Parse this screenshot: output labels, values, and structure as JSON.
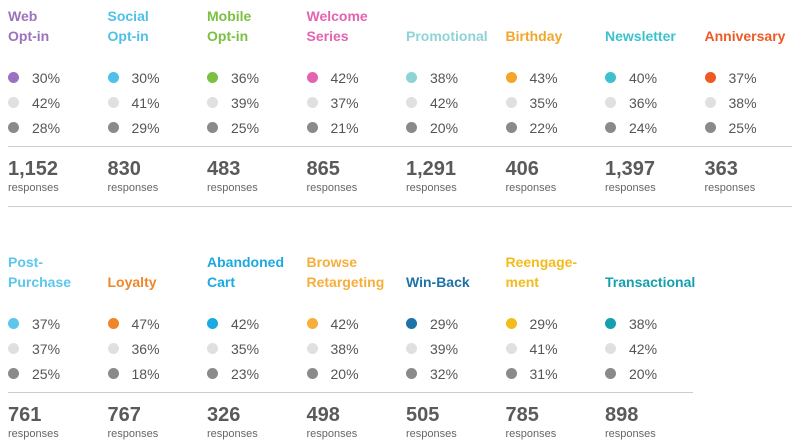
{
  "chart_data": [
    {
      "type": "table",
      "columns": [
        {
          "title": "Web\nOpt-in",
          "color": "#9b72bd",
          "percentages": [
            "30%",
            "42%",
            "28%"
          ],
          "total": "1,152",
          "unit": "responses"
        },
        {
          "title": "Social\nOpt-in",
          "color": "#4fc0e8",
          "percentages": [
            "30%",
            "41%",
            "29%"
          ],
          "total": "830",
          "unit": "responses"
        },
        {
          "title": "Mobile\nOpt-in",
          "color": "#7bc043",
          "percentages": [
            "36%",
            "39%",
            "25%"
          ],
          "total": "483",
          "unit": "responses"
        },
        {
          "title": "Welcome\nSeries",
          "color": "#e463b0",
          "percentages": [
            "42%",
            "37%",
            "21%"
          ],
          "total": "865",
          "unit": "responses"
        },
        {
          "title": "Promotional",
          "color": "#8fd3d6",
          "percentages": [
            "38%",
            "42%",
            "20%"
          ],
          "total": "1,291",
          "unit": "responses"
        },
        {
          "title": "Birthday",
          "color": "#f2a62a",
          "percentages": [
            "43%",
            "35%",
            "22%"
          ],
          "total": "406",
          "unit": "responses"
        },
        {
          "title": "Newsletter",
          "color": "#3cc1ce",
          "percentages": [
            "40%",
            "36%",
            "24%"
          ],
          "total": "1,397",
          "unit": "responses"
        },
        {
          "title": "Anniversary",
          "color": "#ef5a24",
          "percentages": [
            "37%",
            "38%",
            "25%"
          ],
          "total": "363",
          "unit": "responses"
        }
      ]
    },
    {
      "type": "table",
      "columns": [
        {
          "title": "Post-\nPurchase",
          "color": "#5cc6ec",
          "percentages": [
            "37%",
            "37%",
            "25%"
          ],
          "total": "761",
          "unit": "responses"
        },
        {
          "title": "Loyalty",
          "color": "#f0852a",
          "percentages": [
            "47%",
            "36%",
            "18%"
          ],
          "total": "767",
          "unit": "responses"
        },
        {
          "title": "Abandoned\nCart",
          "color": "#1aa9e0",
          "percentages": [
            "42%",
            "35%",
            "23%"
          ],
          "total": "326",
          "unit": "responses"
        },
        {
          "title": "Browse\nRetargeting",
          "color": "#f7ae3a",
          "percentages": [
            "42%",
            "38%",
            "20%"
          ],
          "total": "498",
          "unit": "responses"
        },
        {
          "title": "Win-Back",
          "color": "#1d72a8",
          "percentages": [
            "29%",
            "39%",
            "32%"
          ],
          "total": "505",
          "unit": "responses"
        },
        {
          "title": "Reengage-\nment",
          "color": "#f3bb1c",
          "percentages": [
            "29%",
            "41%",
            "31%"
          ],
          "total": "785",
          "unit": "responses"
        },
        {
          "title": "Transactional",
          "color": "#14a0ae",
          "percentages": [
            "38%",
            "42%",
            "20%"
          ],
          "total": "898",
          "unit": "responses"
        }
      ]
    }
  ],
  "colors": {
    "neutral_dot": "#e0e0e0",
    "negative_dot": "#8a8a8a",
    "rule": "#cccccc"
  }
}
